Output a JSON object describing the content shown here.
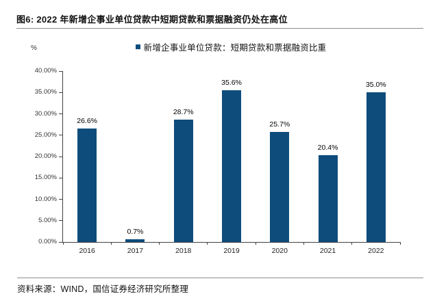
{
  "title": "图6: 2022 年新增企事业单位贷款中短期贷款和票据融资仍处在高位",
  "legend": "新增企事业单位贷款：短期贷款和票据融资比重",
  "unit_label": "%",
  "source": "资料来源：WIND，国信证券经济研究所整理",
  "colors": {
    "bar": "#0e4c7c",
    "axis": "#3f3f3f",
    "rule": "#8c8c8c"
  },
  "chart_data": {
    "type": "bar",
    "title": "新增企事业单位贷款：短期贷款和票据融资比重",
    "categories": [
      "2016",
      "2017",
      "2018",
      "2019",
      "2020",
      "2021",
      "2022"
    ],
    "values": [
      26.6,
      0.7,
      28.7,
      35.6,
      25.7,
      20.4,
      35.0
    ],
    "value_labels": [
      "26.6%",
      "0.7%",
      "28.7%",
      "35.6%",
      "25.7%",
      "20.4%",
      "35.0%"
    ],
    "xlabel": "",
    "ylabel": "%",
    "ylim": [
      0,
      40
    ],
    "y_tick_values": [
      0,
      5,
      10,
      15,
      20,
      25,
      30,
      35,
      40
    ],
    "y_tick_labels": [
      "0.00%",
      "5.00%",
      "10.00%",
      "15.00%",
      "20.00%",
      "25.00%",
      "30.00%",
      "35.00%",
      "40.00%"
    ],
    "grid": false,
    "legend_position": "top-center"
  }
}
